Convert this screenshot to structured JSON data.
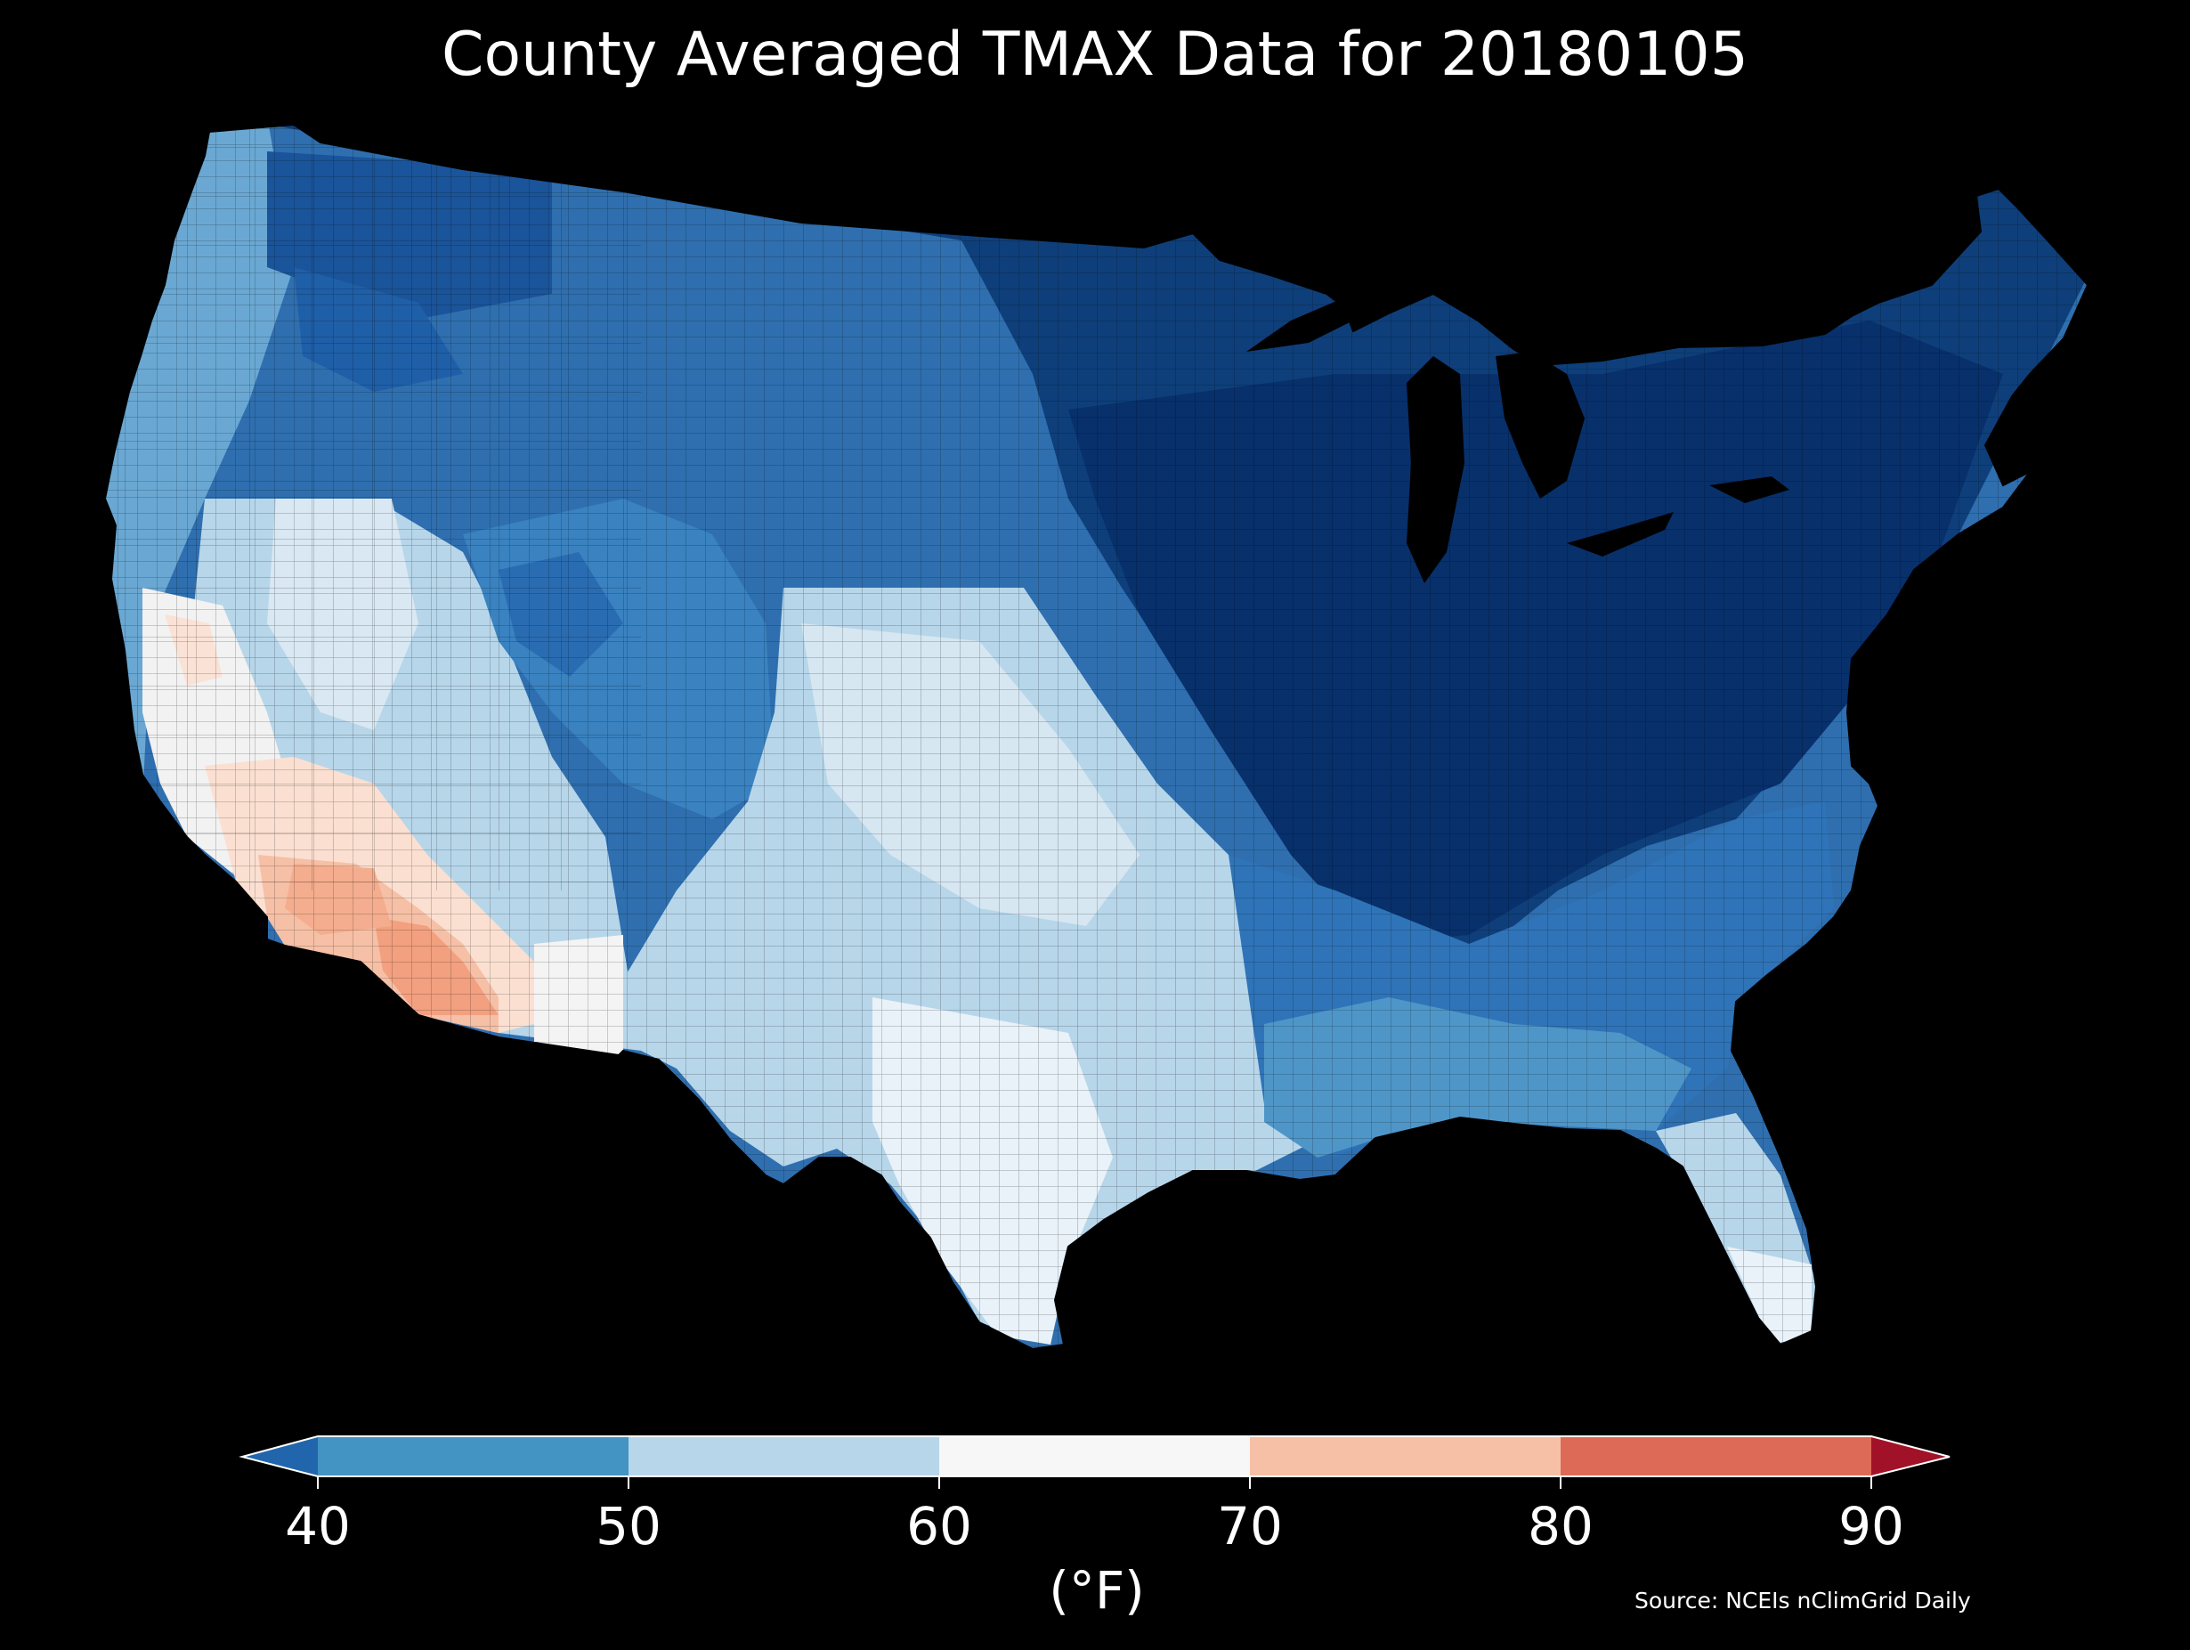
{
  "title": "County Averaged TMAX Data for 20180105",
  "colorbar": {
    "ticks": [
      "40",
      "50",
      "60",
      "70",
      "80",
      "90"
    ],
    "unit": "(°F)",
    "bins": [
      {
        "range": "<40",
        "color": "#2166ac"
      },
      {
        "range": "40-50",
        "color": "#4393c3"
      },
      {
        "range": "50-60",
        "color": "#b7d6ea"
      },
      {
        "range": "60-70",
        "color": "#f7f7f7"
      },
      {
        "range": "70-80",
        "color": "#f6c0a6"
      },
      {
        "range": "80-90",
        "color": "#dd6a57"
      },
      {
        "range": ">90",
        "color": "#a11228"
      }
    ]
  },
  "source": "Source: NCEIs nClimGrid Daily",
  "map_colors": {
    "background": "#000000",
    "very_cold": "#08306b",
    "cold": "#2166ac",
    "cool": "#4393c3",
    "mild": "#b7d6ea",
    "neutral": "#f7f7f7",
    "warm": "#f6c0a6",
    "hot": "#f09a7c"
  }
}
